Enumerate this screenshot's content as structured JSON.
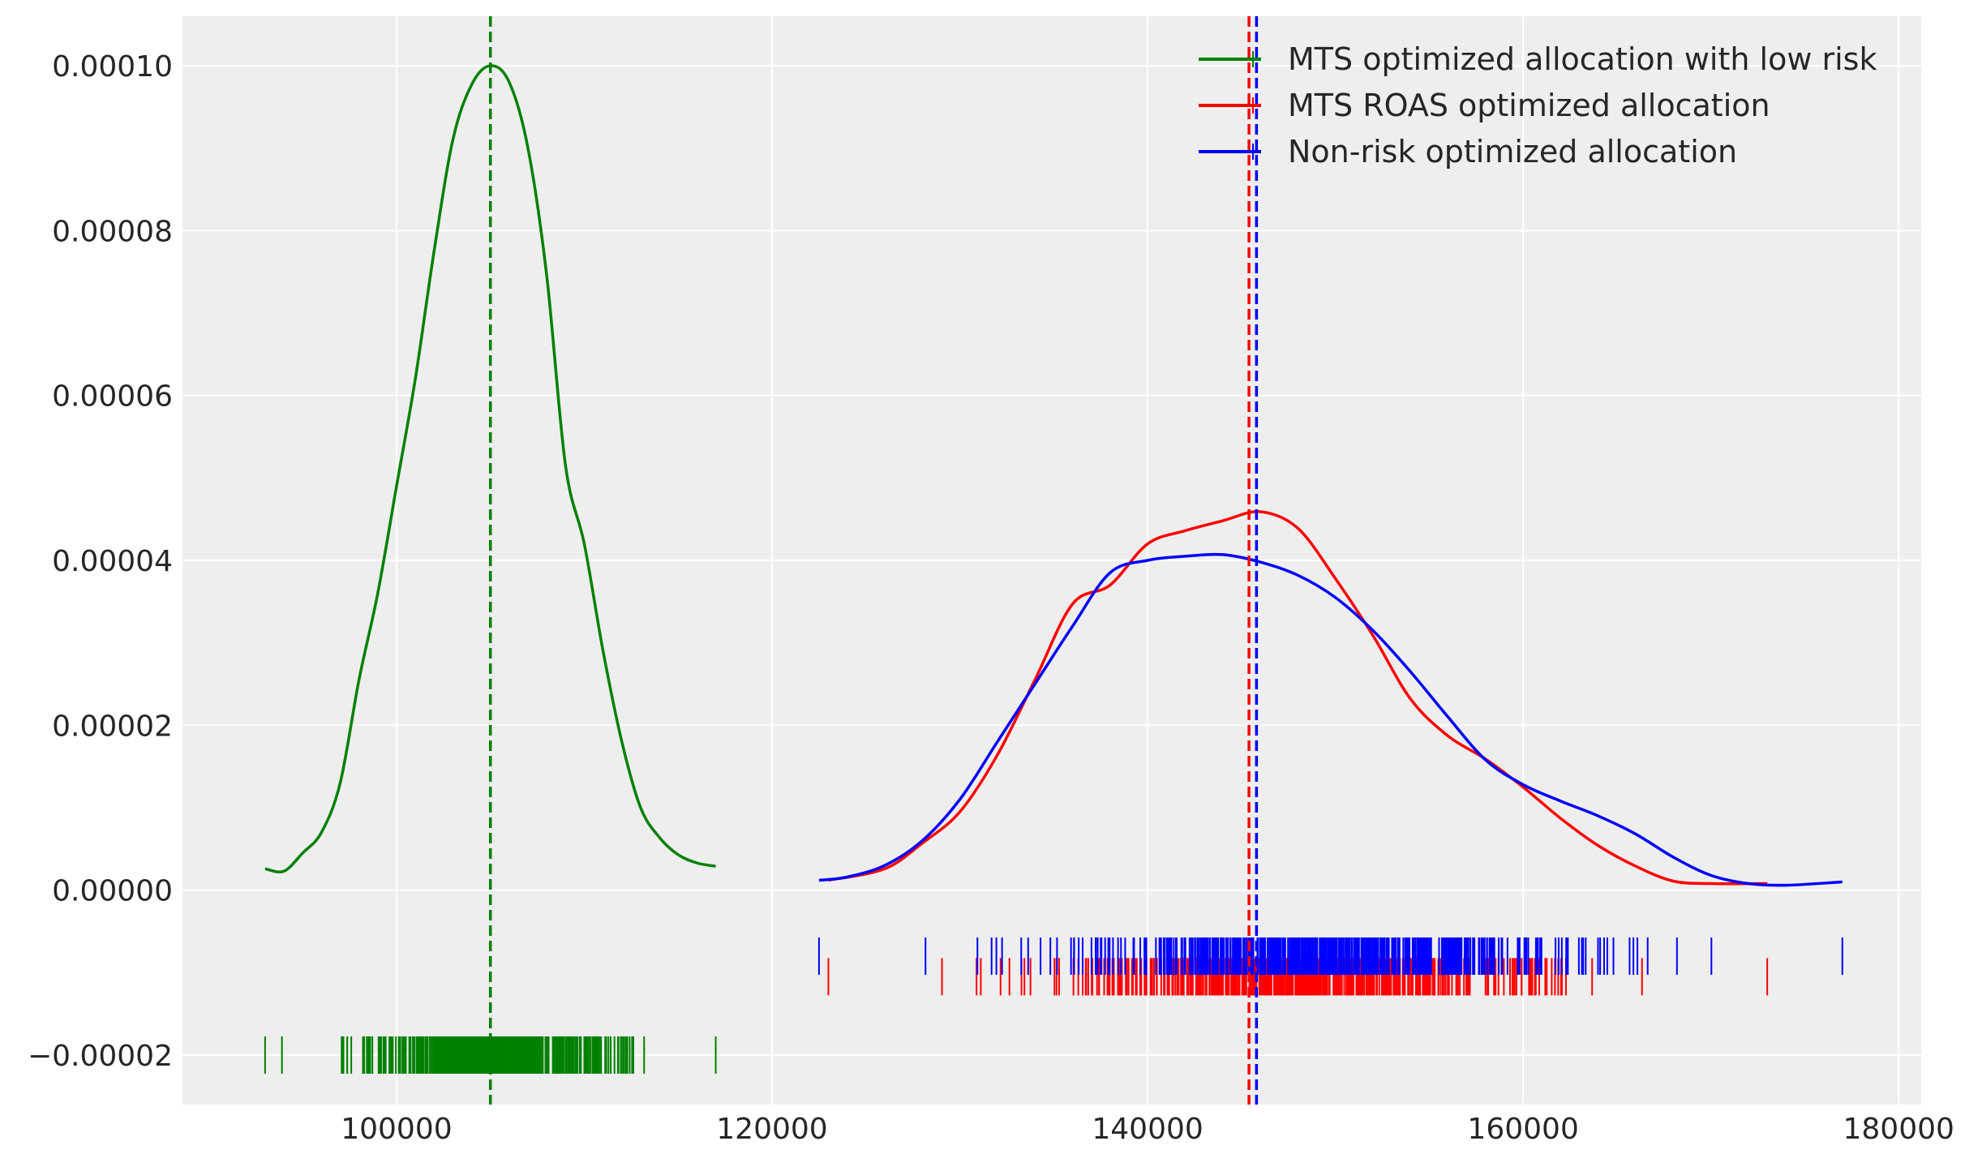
{
  "chart_data": {
    "type": "line",
    "title": "",
    "xlabel": "",
    "ylabel": "",
    "xlim": [
      88600,
      181200
    ],
    "ylim": [
      -2.6e-05,
      0.000106
    ],
    "grid": true,
    "background_color": "#eeeeee",
    "legend_placement": "top-right",
    "xticks": [
      100000,
      120000,
      140000,
      160000,
      180000
    ],
    "xtick_labels": [
      "100000",
      "120000",
      "140000",
      "160000",
      "180000"
    ],
    "yticks": [
      -2e-05,
      0,
      2e-05,
      4e-05,
      6e-05,
      8e-05,
      0.0001
    ],
    "ytick_labels": [
      "−0.00002",
      "0.00000",
      "0.00002",
      "0.00004",
      "0.00006",
      "0.00008",
      "0.00010"
    ],
    "series": [
      {
        "name": "MTS optimized allocation with low risk",
        "color": "#008000",
        "mean": 105000,
        "x": [
          93000,
          94000,
          95000,
          96000,
          97000,
          98000,
          99000,
          100000,
          101000,
          102000,
          103000,
          104000,
          105000,
          106000,
          107000,
          108000,
          109000,
          110000,
          111000,
          112000,
          113000,
          114000,
          115000,
          116000,
          117000
        ],
        "y": [
          2.6e-06,
          2.3e-06,
          4.5e-06,
          7e-06,
          1.3e-05,
          2.55e-05,
          3.6e-05,
          4.9e-05,
          6.2e-05,
          7.75e-05,
          9.1e-05,
          9.77e-05,
          0.0001,
          9.8e-05,
          9e-05,
          7.45e-05,
          5.15e-05,
          4.2e-05,
          2.9e-05,
          1.8e-05,
          1e-05,
          6.4e-06,
          4.3e-06,
          3.3e-06,
          2.9e-06
        ],
        "rug": {
          "y": -2e-05,
          "min": 93000,
          "max": 117000
        }
      },
      {
        "name": "MTS ROAS optimized allocation",
        "color": "#ff0000",
        "mean": 145400,
        "x": [
          123000,
          126000,
          128000,
          130000,
          132000,
          134000,
          136000,
          138000,
          140000,
          142000,
          144000,
          146000,
          148000,
          150000,
          152000,
          154000,
          156000,
          158000,
          160000,
          162000,
          164000,
          166000,
          168000,
          170000,
          173000
        ],
        "y": [
          1.2e-06,
          2.6e-06,
          5.7e-06,
          9.5e-06,
          1.64e-05,
          2.55e-05,
          3.47e-05,
          3.7e-05,
          4.2e-05,
          4.36e-05,
          4.48e-05,
          4.59e-05,
          4.39e-05,
          3.78e-05,
          3.09e-05,
          2.32e-05,
          1.87e-05,
          1.59e-05,
          1.25e-05,
          8.7e-06,
          5.4e-06,
          2.9e-06,
          1.1e-06,
          8e-07,
          8e-07
        ],
        "rug": {
          "y": -1.05e-05,
          "min": 123000,
          "max": 173000
        }
      },
      {
        "name": "Non-risk optimized allocation",
        "color": "#0000ff",
        "mean": 145800,
        "x": [
          122500,
          124000,
          126000,
          128000,
          130000,
          132000,
          134000,
          136000,
          138000,
          140000,
          142000,
          144000,
          146000,
          148000,
          150000,
          152000,
          154000,
          156000,
          158000,
          160000,
          162000,
          164000,
          166000,
          168000,
          170000,
          172000,
          174000,
          177000
        ],
        "y": [
          1.2e-06,
          1.6e-06,
          3e-06,
          6e-06,
          1.1e-05,
          1.8e-05,
          2.5e-05,
          3.2e-05,
          3.85e-05,
          4e-05,
          4.05e-05,
          4.07e-05,
          3.98e-05,
          3.82e-05,
          3.55e-05,
          3.15e-05,
          2.65e-05,
          2.1e-05,
          1.58e-05,
          1.28e-05,
          1.08e-05,
          9e-06,
          6.8e-06,
          4e-06,
          1.8e-06,
          8e-07,
          6e-07,
          1e-06
        ],
        "rug": {
          "y": -8e-06,
          "min": 122500,
          "max": 177000
        }
      }
    ]
  }
}
